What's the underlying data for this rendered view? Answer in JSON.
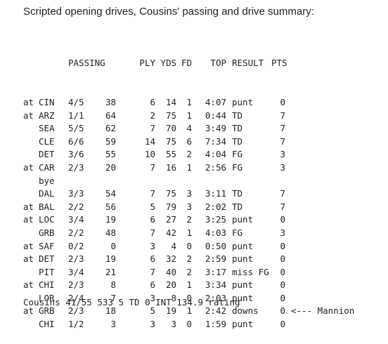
{
  "title": "Scripted opening drives, Cousins' passing and drive summary:",
  "headers": {
    "passing": "PASSING",
    "ply": "PLY",
    "yds": "YDS",
    "fd": "FD",
    "top": "TOP",
    "result": "RESULT",
    "pts": "PTS"
  },
  "rows": [
    {
      "at": "at",
      "team": "CIN",
      "pass": "4/5",
      "pyds": "38",
      "ply": "6",
      "yds": "14",
      "fd": "1",
      "top": "4:07",
      "result": "punt",
      "pts": "0",
      "note": ""
    },
    {
      "at": "at",
      "team": "ARZ",
      "pass": "1/1",
      "pyds": "64",
      "ply": "2",
      "yds": "75",
      "fd": "1",
      "top": "0:44",
      "result": "TD",
      "pts": "7",
      "note": ""
    },
    {
      "at": "",
      "team": "SEA",
      "pass": "5/5",
      "pyds": "62",
      "ply": "7",
      "yds": "70",
      "fd": "4",
      "top": "3:49",
      "result": "TD",
      "pts": "7",
      "note": ""
    },
    {
      "at": "",
      "team": "CLE",
      "pass": "6/6",
      "pyds": "59",
      "ply": "14",
      "yds": "75",
      "fd": "6",
      "top": "7:34",
      "result": "TD",
      "pts": "7",
      "note": ""
    },
    {
      "at": "",
      "team": "DET",
      "pass": "3/6",
      "pyds": "55",
      "ply": "10",
      "yds": "55",
      "fd": "2",
      "top": "4:04",
      "result": "FG",
      "pts": "3",
      "note": ""
    },
    {
      "at": "at",
      "team": "CAR",
      "pass": "2/3",
      "pyds": "20",
      "ply": "7",
      "yds": "16",
      "fd": "1",
      "top": "2:56",
      "result": "FG",
      "pts": "3",
      "note": ""
    },
    {
      "at": "",
      "team": "bye",
      "pass": "",
      "pyds": "",
      "ply": "",
      "yds": "",
      "fd": "",
      "top": "",
      "result": "",
      "pts": "",
      "note": ""
    },
    {
      "at": "",
      "team": "DAL",
      "pass": "3/3",
      "pyds": "54",
      "ply": "7",
      "yds": "75",
      "fd": "3",
      "top": "3:11",
      "result": "TD",
      "pts": "7",
      "note": ""
    },
    {
      "at": "at",
      "team": "BAL",
      "pass": "2/2",
      "pyds": "56",
      "ply": "5",
      "yds": "79",
      "fd": "3",
      "top": "2:02",
      "result": "TD",
      "pts": "7",
      "note": ""
    },
    {
      "at": "at",
      "team": "LOC",
      "pass": "3/4",
      "pyds": "19",
      "ply": "6",
      "yds": "27",
      "fd": "2",
      "top": "3:25",
      "result": "punt",
      "pts": "0",
      "note": ""
    },
    {
      "at": "",
      "team": "GRB",
      "pass": "2/2",
      "pyds": "48",
      "ply": "7",
      "yds": "42",
      "fd": "1",
      "top": "4:03",
      "result": "FG",
      "pts": "3",
      "note": ""
    },
    {
      "at": "at",
      "team": "SAF",
      "pass": "0/2",
      "pyds": "0",
      "ply": "3",
      "yds": "4",
      "fd": "0",
      "top": "0:50",
      "result": "punt",
      "pts": "0",
      "note": ""
    },
    {
      "at": "at",
      "team": "DET",
      "pass": "2/3",
      "pyds": "19",
      "ply": "6",
      "yds": "32",
      "fd": "2",
      "top": "2:59",
      "result": "punt",
      "pts": "0",
      "note": ""
    },
    {
      "at": "",
      "team": "PIT",
      "pass": "3/4",
      "pyds": "21",
      "ply": "7",
      "yds": "40",
      "fd": "2",
      "top": "3:17",
      "result": "miss FG",
      "pts": "0",
      "note": ""
    },
    {
      "at": "at",
      "team": "CHI",
      "pass": "2/3",
      "pyds": "8",
      "ply": "6",
      "yds": "20",
      "fd": "1",
      "top": "3:34",
      "result": "punt",
      "pts": "0",
      "note": ""
    },
    {
      "at": "",
      "team": "LOR",
      "pass": "2/4",
      "pyds": "7",
      "ply": "3",
      "yds": "8",
      "fd": "0",
      "top": "2:03",
      "result": "punt",
      "pts": "0",
      "note": ""
    },
    {
      "at": "at",
      "team": "GRB",
      "pass": "2/3",
      "pyds": "18",
      "ply": "5",
      "yds": "19",
      "fd": "1",
      "top": "2:42",
      "result": "downs",
      "pts": "0",
      "note": "<--- Mannion"
    },
    {
      "at": "",
      "team": "CHI",
      "pass": "1/2",
      "pyds": "3",
      "ply": "3",
      "yds": "3",
      "fd": "0",
      "top": "1:59",
      "result": "punt",
      "pts": "0",
      "note": ""
    }
  ],
  "summary": "Cousins 41/55 533 5 TD 0 INT 134.9 rating"
}
